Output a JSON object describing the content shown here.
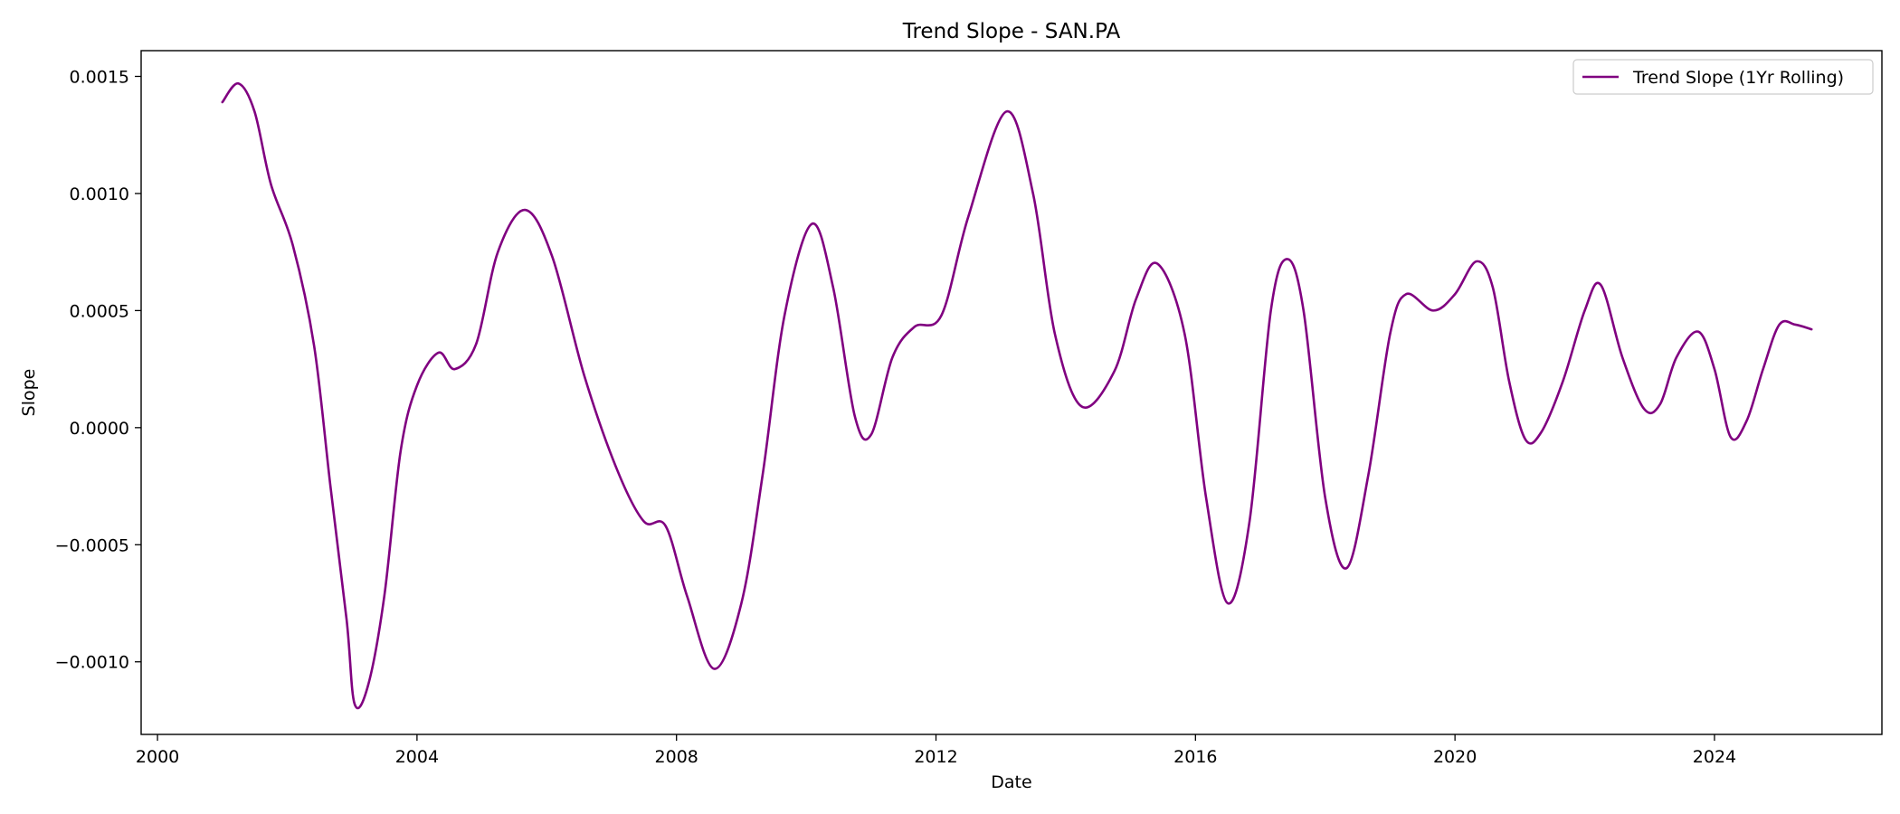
{
  "chart_data": {
    "type": "line",
    "title": "Trend Slope - SAN.PA",
    "xlabel": "Date",
    "ylabel": "Slope",
    "x_axis_type": "date",
    "xlim": [
      "1999-10-01",
      "2026-08-01"
    ],
    "ylim": [
      -0.00131,
      0.00161
    ],
    "grid": false,
    "legend_position": "top-right",
    "x_ticks": [
      {
        "value": "2000-01-01",
        "label": "2000"
      },
      {
        "value": "2004-01-01",
        "label": "2004"
      },
      {
        "value": "2008-01-01",
        "label": "2008"
      },
      {
        "value": "2012-01-01",
        "label": "2012"
      },
      {
        "value": "2016-01-01",
        "label": "2016"
      },
      {
        "value": "2020-01-01",
        "label": "2020"
      },
      {
        "value": "2024-01-01",
        "label": "2024"
      }
    ],
    "y_ticks": [
      {
        "value": -0.001,
        "label": "−0.0010"
      },
      {
        "value": -0.0005,
        "label": "−0.0005"
      },
      {
        "value": 0.0,
        "label": "0.0000"
      },
      {
        "value": 0.0005,
        "label": "0.0005"
      },
      {
        "value": 0.001,
        "label": "0.0010"
      },
      {
        "value": 0.0015,
        "label": "0.0015"
      }
    ],
    "series": [
      {
        "name": "Trend Slope (1Yr Rolling)",
        "color": "#800080",
        "points": [
          [
            "2001-01-01",
            0.00139
          ],
          [
            "2001-04-01",
            0.00147
          ],
          [
            "2001-07-01",
            0.00135
          ],
          [
            "2001-10-01",
            0.00104
          ],
          [
            "2002-02-01",
            0.00078
          ],
          [
            "2002-06-01",
            0.00035
          ],
          [
            "2002-09-01",
            -0.00025
          ],
          [
            "2002-12-01",
            -0.00082
          ],
          [
            "2003-01-15",
            -0.00118
          ],
          [
            "2003-04-01",
            -0.0011
          ],
          [
            "2003-07-01",
            -0.00072
          ],
          [
            "2003-10-01",
            -0.0001
          ],
          [
            "2004-01-01",
            0.00018
          ],
          [
            "2004-05-01",
            0.00032
          ],
          [
            "2004-08-01",
            0.00025
          ],
          [
            "2004-12-01",
            0.00036
          ],
          [
            "2005-04-01",
            0.00075
          ],
          [
            "2005-09-01",
            0.00093
          ],
          [
            "2006-02-01",
            0.00073
          ],
          [
            "2006-08-01",
            0.00022
          ],
          [
            "2007-02-01",
            -0.00018
          ],
          [
            "2007-07-01",
            -0.0004
          ],
          [
            "2007-11-01",
            -0.00042
          ],
          [
            "2008-03-01",
            -0.00072
          ],
          [
            "2008-08-01",
            -0.00103
          ],
          [
            "2009-01-01",
            -0.00075
          ],
          [
            "2009-05-01",
            -0.0002
          ],
          [
            "2009-09-01",
            0.00048
          ],
          [
            "2010-02-01",
            0.00087
          ],
          [
            "2010-06-01",
            0.0006
          ],
          [
            "2010-10-01",
            5e-05
          ],
          [
            "2011-01-01",
            -3e-05
          ],
          [
            "2011-05-01",
            0.0003
          ],
          [
            "2011-09-01",
            0.00043
          ],
          [
            "2012-02-01",
            0.00048
          ],
          [
            "2012-07-01",
            0.0009
          ],
          [
            "2013-02-01",
            0.00135
          ],
          [
            "2013-07-01",
            0.001
          ],
          [
            "2013-11-01",
            0.0004
          ],
          [
            "2014-04-01",
            9e-05
          ],
          [
            "2014-10-01",
            0.00024
          ],
          [
            "2015-02-01",
            0.00055
          ],
          [
            "2015-06-01",
            0.0007
          ],
          [
            "2015-11-01",
            0.0004
          ],
          [
            "2016-03-01",
            -0.0003
          ],
          [
            "2016-07-01",
            -0.00075
          ],
          [
            "2016-11-01",
            -0.0004
          ],
          [
            "2017-03-01",
            0.0005
          ],
          [
            "2017-06-01",
            0.00072
          ],
          [
            "2017-09-01",
            0.0005
          ],
          [
            "2018-01-01",
            -0.0003
          ],
          [
            "2018-05-01",
            -0.0006
          ],
          [
            "2018-09-01",
            -0.0002
          ],
          [
            "2019-01-01",
            0.0004
          ],
          [
            "2019-04-01",
            0.00057
          ],
          [
            "2019-09-01",
            0.0005
          ],
          [
            "2020-01-01",
            0.00057
          ],
          [
            "2020-05-01",
            0.00071
          ],
          [
            "2020-08-01",
            0.0006
          ],
          [
            "2020-11-01",
            0.0002
          ],
          [
            "2021-02-01",
            -5e-05
          ],
          [
            "2021-05-01",
            -2e-05
          ],
          [
            "2021-09-01",
            0.0002
          ],
          [
            "2022-01-01",
            0.0005
          ],
          [
            "2022-04-01",
            0.00061
          ],
          [
            "2022-08-01",
            0.0003
          ],
          [
            "2022-12-01",
            8e-05
          ],
          [
            "2023-03-01",
            0.0001
          ],
          [
            "2023-06-01",
            0.0003
          ],
          [
            "2023-10-01",
            0.00041
          ],
          [
            "2024-01-01",
            0.00025
          ],
          [
            "2024-04-01",
            -4e-05
          ],
          [
            "2024-07-01",
            3e-05
          ],
          [
            "2024-10-01",
            0.00025
          ],
          [
            "2025-01-01",
            0.00044
          ],
          [
            "2025-04-01",
            0.00044
          ],
          [
            "2025-07-01",
            0.00042
          ]
        ]
      }
    ]
  }
}
